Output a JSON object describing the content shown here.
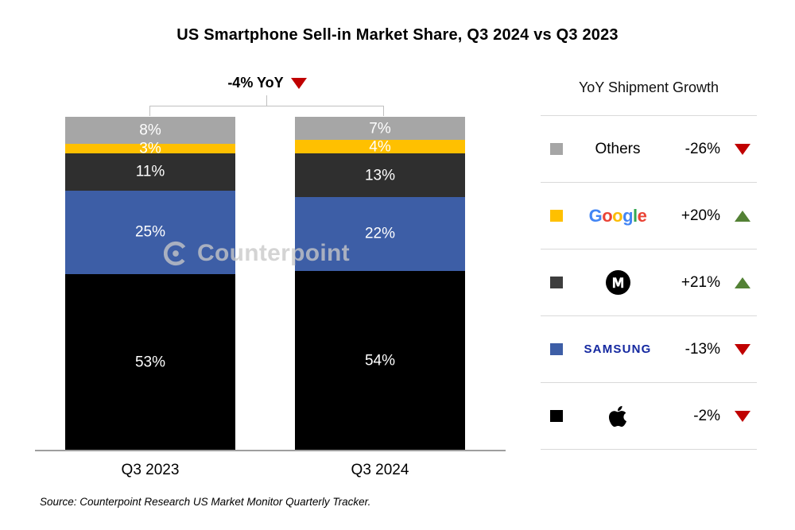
{
  "title": "US Smartphone Sell-in Market Share, Q3 2024 vs Q3 2023",
  "annotation": {
    "label": "-4% YoY",
    "direction": "down"
  },
  "watermark": "Counterpoint",
  "source": "Source: Counterpoint Research US Market Monitor Quarterly Tracker.",
  "legend": {
    "heading": "YoY Shipment Growth",
    "google_letters": [
      {
        "ch": "G",
        "color": "#4285F4"
      },
      {
        "ch": "o",
        "color": "#EA4335"
      },
      {
        "ch": "o",
        "color": "#FBBC05"
      },
      {
        "ch": "g",
        "color": "#4285F4"
      },
      {
        "ch": "l",
        "color": "#34A853"
      },
      {
        "ch": "e",
        "color": "#EA4335"
      }
    ],
    "rows": [
      {
        "brand": "Others",
        "swatch": "#a6a6a6",
        "growth": "-26%",
        "direction": "down"
      },
      {
        "brand": "Google",
        "swatch": "#ffc000",
        "growth": "+20%",
        "direction": "up"
      },
      {
        "brand": "Motorola",
        "swatch": "#3d3d3d",
        "growth": "+21%",
        "direction": "up"
      },
      {
        "brand": "Samsung",
        "swatch": "#3d5ea6",
        "growth": "-13%",
        "direction": "down"
      },
      {
        "brand": "Apple",
        "swatch": "#000000",
        "growth": "-2%",
        "direction": "down"
      }
    ]
  },
  "chart_data": {
    "type": "bar",
    "stacked": true,
    "title": "US Smartphone Sell-in Market Share, Q3 2024 vs Q3 2023",
    "annotation": "-4% YoY",
    "categories": [
      "Q3 2023",
      "Q3 2024"
    ],
    "series": [
      {
        "name": "Others",
        "color": "#a6a6a6",
        "values": [
          8,
          7
        ],
        "labels": [
          "8%",
          "7%"
        ],
        "yoy_growth": "-26%"
      },
      {
        "name": "Google",
        "color": "#ffc000",
        "values": [
          3,
          4
        ],
        "labels": [
          "3%",
          "4%"
        ],
        "yoy_growth": "+20%"
      },
      {
        "name": "Motorola",
        "color": "#2f2f2f",
        "values": [
          11,
          13
        ],
        "labels": [
          "11%",
          "13%"
        ],
        "yoy_growth": "+21%"
      },
      {
        "name": "Samsung",
        "color": "#3d5ea6",
        "values": [
          25,
          22
        ],
        "labels": [
          "25%",
          "22%"
        ],
        "yoy_growth": "-13%"
      },
      {
        "name": "Apple",
        "color": "#000000",
        "values": [
          53,
          54
        ],
        "labels": [
          "53%",
          "54%"
        ],
        "yoy_growth": "-2%"
      }
    ],
    "xlabel": "",
    "ylabel": "",
    "ylim": [
      0,
      100
    ],
    "grid": false,
    "legend_position": "right",
    "stack_order_top_to_bottom": [
      "Others",
      "Google",
      "Motorola",
      "Samsung",
      "Apple"
    ]
  },
  "colors": {
    "up_arrow": "#538135",
    "down_arrow": "#c00000",
    "divider": "#d9d9d9",
    "axis": "#9e9e9e",
    "samsung_logo": "#1428a0"
  }
}
